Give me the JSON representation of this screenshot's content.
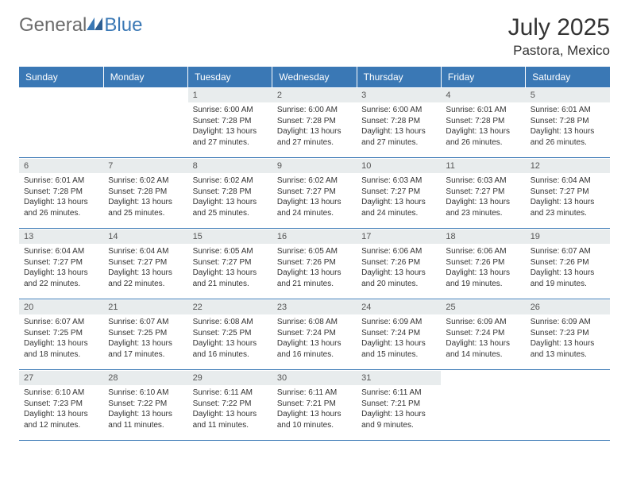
{
  "brand": {
    "general": "General",
    "blue": "Blue"
  },
  "title": {
    "month_year": "July 2025",
    "location": "Pastora, Mexico"
  },
  "colors": {
    "header_bg": "#3a78b5",
    "header_text": "#ffffff",
    "daynum_bg": "#e8eced",
    "row_border": "#3a78b5",
    "logo_gray": "#6b6b6b",
    "logo_blue": "#3a78b5"
  },
  "weekdays": [
    "Sunday",
    "Monday",
    "Tuesday",
    "Wednesday",
    "Thursday",
    "Friday",
    "Saturday"
  ],
  "weeks": [
    [
      null,
      null,
      {
        "n": "1",
        "sr": "Sunrise: 6:00 AM",
        "ss": "Sunset: 7:28 PM",
        "d1": "Daylight: 13 hours",
        "d2": "and 27 minutes."
      },
      {
        "n": "2",
        "sr": "Sunrise: 6:00 AM",
        "ss": "Sunset: 7:28 PM",
        "d1": "Daylight: 13 hours",
        "d2": "and 27 minutes."
      },
      {
        "n": "3",
        "sr": "Sunrise: 6:00 AM",
        "ss": "Sunset: 7:28 PM",
        "d1": "Daylight: 13 hours",
        "d2": "and 27 minutes."
      },
      {
        "n": "4",
        "sr": "Sunrise: 6:01 AM",
        "ss": "Sunset: 7:28 PM",
        "d1": "Daylight: 13 hours",
        "d2": "and 26 minutes."
      },
      {
        "n": "5",
        "sr": "Sunrise: 6:01 AM",
        "ss": "Sunset: 7:28 PM",
        "d1": "Daylight: 13 hours",
        "d2": "and 26 minutes."
      }
    ],
    [
      {
        "n": "6",
        "sr": "Sunrise: 6:01 AM",
        "ss": "Sunset: 7:28 PM",
        "d1": "Daylight: 13 hours",
        "d2": "and 26 minutes."
      },
      {
        "n": "7",
        "sr": "Sunrise: 6:02 AM",
        "ss": "Sunset: 7:28 PM",
        "d1": "Daylight: 13 hours",
        "d2": "and 25 minutes."
      },
      {
        "n": "8",
        "sr": "Sunrise: 6:02 AM",
        "ss": "Sunset: 7:28 PM",
        "d1": "Daylight: 13 hours",
        "d2": "and 25 minutes."
      },
      {
        "n": "9",
        "sr": "Sunrise: 6:02 AM",
        "ss": "Sunset: 7:27 PM",
        "d1": "Daylight: 13 hours",
        "d2": "and 24 minutes."
      },
      {
        "n": "10",
        "sr": "Sunrise: 6:03 AM",
        "ss": "Sunset: 7:27 PM",
        "d1": "Daylight: 13 hours",
        "d2": "and 24 minutes."
      },
      {
        "n": "11",
        "sr": "Sunrise: 6:03 AM",
        "ss": "Sunset: 7:27 PM",
        "d1": "Daylight: 13 hours",
        "d2": "and 23 minutes."
      },
      {
        "n": "12",
        "sr": "Sunrise: 6:04 AM",
        "ss": "Sunset: 7:27 PM",
        "d1": "Daylight: 13 hours",
        "d2": "and 23 minutes."
      }
    ],
    [
      {
        "n": "13",
        "sr": "Sunrise: 6:04 AM",
        "ss": "Sunset: 7:27 PM",
        "d1": "Daylight: 13 hours",
        "d2": "and 22 minutes."
      },
      {
        "n": "14",
        "sr": "Sunrise: 6:04 AM",
        "ss": "Sunset: 7:27 PM",
        "d1": "Daylight: 13 hours",
        "d2": "and 22 minutes."
      },
      {
        "n": "15",
        "sr": "Sunrise: 6:05 AM",
        "ss": "Sunset: 7:27 PM",
        "d1": "Daylight: 13 hours",
        "d2": "and 21 minutes."
      },
      {
        "n": "16",
        "sr": "Sunrise: 6:05 AM",
        "ss": "Sunset: 7:26 PM",
        "d1": "Daylight: 13 hours",
        "d2": "and 21 minutes."
      },
      {
        "n": "17",
        "sr": "Sunrise: 6:06 AM",
        "ss": "Sunset: 7:26 PM",
        "d1": "Daylight: 13 hours",
        "d2": "and 20 minutes."
      },
      {
        "n": "18",
        "sr": "Sunrise: 6:06 AM",
        "ss": "Sunset: 7:26 PM",
        "d1": "Daylight: 13 hours",
        "d2": "and 19 minutes."
      },
      {
        "n": "19",
        "sr": "Sunrise: 6:07 AM",
        "ss": "Sunset: 7:26 PM",
        "d1": "Daylight: 13 hours",
        "d2": "and 19 minutes."
      }
    ],
    [
      {
        "n": "20",
        "sr": "Sunrise: 6:07 AM",
        "ss": "Sunset: 7:25 PM",
        "d1": "Daylight: 13 hours",
        "d2": "and 18 minutes."
      },
      {
        "n": "21",
        "sr": "Sunrise: 6:07 AM",
        "ss": "Sunset: 7:25 PM",
        "d1": "Daylight: 13 hours",
        "d2": "and 17 minutes."
      },
      {
        "n": "22",
        "sr": "Sunrise: 6:08 AM",
        "ss": "Sunset: 7:25 PM",
        "d1": "Daylight: 13 hours",
        "d2": "and 16 minutes."
      },
      {
        "n": "23",
        "sr": "Sunrise: 6:08 AM",
        "ss": "Sunset: 7:24 PM",
        "d1": "Daylight: 13 hours",
        "d2": "and 16 minutes."
      },
      {
        "n": "24",
        "sr": "Sunrise: 6:09 AM",
        "ss": "Sunset: 7:24 PM",
        "d1": "Daylight: 13 hours",
        "d2": "and 15 minutes."
      },
      {
        "n": "25",
        "sr": "Sunrise: 6:09 AM",
        "ss": "Sunset: 7:24 PM",
        "d1": "Daylight: 13 hours",
        "d2": "and 14 minutes."
      },
      {
        "n": "26",
        "sr": "Sunrise: 6:09 AM",
        "ss": "Sunset: 7:23 PM",
        "d1": "Daylight: 13 hours",
        "d2": "and 13 minutes."
      }
    ],
    [
      {
        "n": "27",
        "sr": "Sunrise: 6:10 AM",
        "ss": "Sunset: 7:23 PM",
        "d1": "Daylight: 13 hours",
        "d2": "and 12 minutes."
      },
      {
        "n": "28",
        "sr": "Sunrise: 6:10 AM",
        "ss": "Sunset: 7:22 PM",
        "d1": "Daylight: 13 hours",
        "d2": "and 11 minutes."
      },
      {
        "n": "29",
        "sr": "Sunrise: 6:11 AM",
        "ss": "Sunset: 7:22 PM",
        "d1": "Daylight: 13 hours",
        "d2": "and 11 minutes."
      },
      {
        "n": "30",
        "sr": "Sunrise: 6:11 AM",
        "ss": "Sunset: 7:21 PM",
        "d1": "Daylight: 13 hours",
        "d2": "and 10 minutes."
      },
      {
        "n": "31",
        "sr": "Sunrise: 6:11 AM",
        "ss": "Sunset: 7:21 PM",
        "d1": "Daylight: 13 hours",
        "d2": "and 9 minutes."
      },
      null,
      null
    ]
  ]
}
